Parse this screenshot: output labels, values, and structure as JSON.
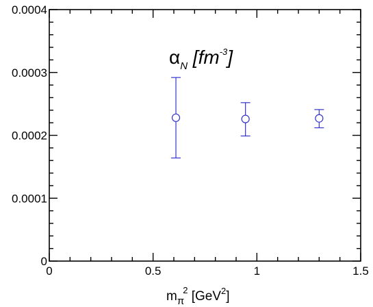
{
  "chart_data": {
    "type": "scatter",
    "title": "",
    "annotation": {
      "symbol": "α",
      "subscript": "N",
      "unit_prefix": " [fm",
      "unit_exponent": "-3",
      "unit_suffix": "]"
    },
    "xlabel": {
      "base": "m",
      "subscript": "π",
      "superscript": "2",
      "unit_prefix": " [GeV",
      "unit_exponent": "2",
      "unit_suffix": "]"
    },
    "xlim": [
      0,
      1.5
    ],
    "ylim": [
      0,
      0.0004
    ],
    "xticks": [
      {
        "value": 0,
        "label": "0"
      },
      {
        "value": 0.5,
        "label": "0.5"
      },
      {
        "value": 1,
        "label": "1"
      },
      {
        "value": 1.5,
        "label": "1.5"
      }
    ],
    "yticks": [
      {
        "value": 0,
        "label": "0"
      },
      {
        "value": 0.0001,
        "label": "0.0001"
      },
      {
        "value": 0.0002,
        "label": "0.0002"
      },
      {
        "value": 0.0003,
        "label": "0.0003"
      },
      {
        "value": 0.0004,
        "label": "0.0004"
      }
    ],
    "x_minor_step": 0.1,
    "y_minor_step": 2e-05,
    "grid": false,
    "series": [
      {
        "color": "#3333cc",
        "marker": "open-circle",
        "points": [
          {
            "x": 0.61,
            "y": 0.000228,
            "err_low": 0.000164,
            "err_high": 0.000292
          },
          {
            "x": 0.945,
            "y": 0.000226,
            "err_low": 0.000199,
            "err_high": 0.000252
          },
          {
            "x": 1.3,
            "y": 0.000227,
            "err_low": 0.000212,
            "err_high": 0.000241
          }
        ]
      }
    ]
  }
}
